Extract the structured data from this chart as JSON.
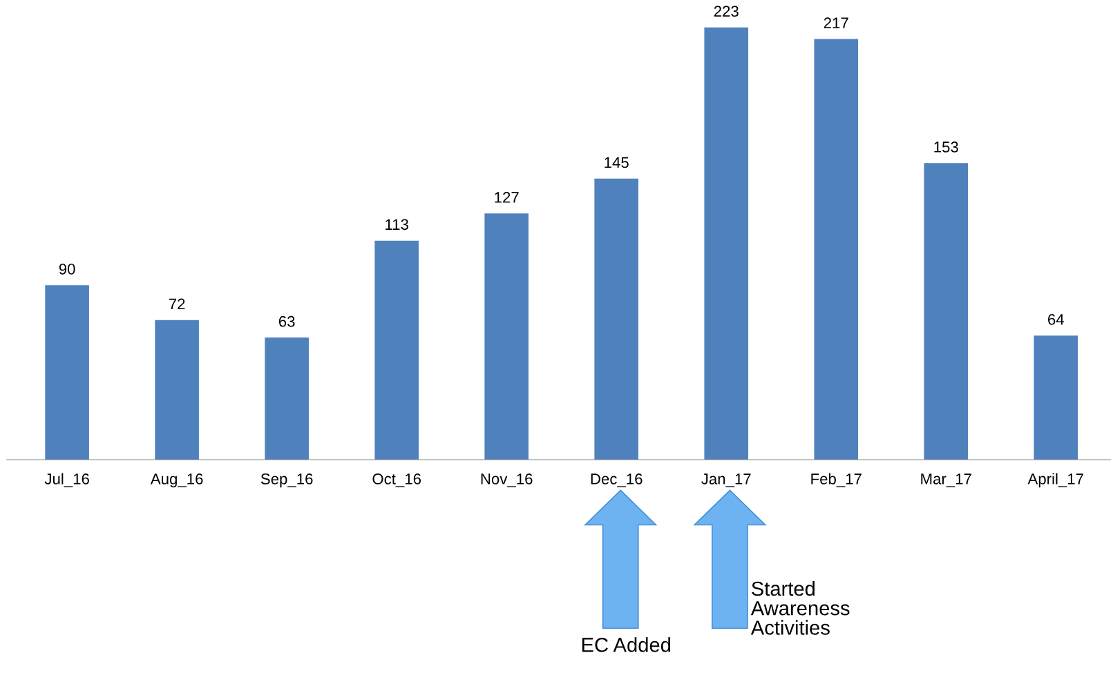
{
  "chart_data": {
    "type": "bar",
    "categories": [
      "Jul_16",
      "Aug_16",
      "Sep_16",
      "Oct_16",
      "Nov_16",
      "Dec_16",
      "Jan_17",
      "Feb_17",
      "Mar_17",
      "April_17"
    ],
    "values": [
      90,
      72,
      63,
      113,
      127,
      145,
      223,
      217,
      153,
      64
    ],
    "color": "#4f81bd",
    "data_labels": true,
    "grid": false,
    "legend": false,
    "tick_labels": "x",
    "annotations": [
      "EC Added",
      "Started\nAwareness\nActivities"
    ]
  }
}
